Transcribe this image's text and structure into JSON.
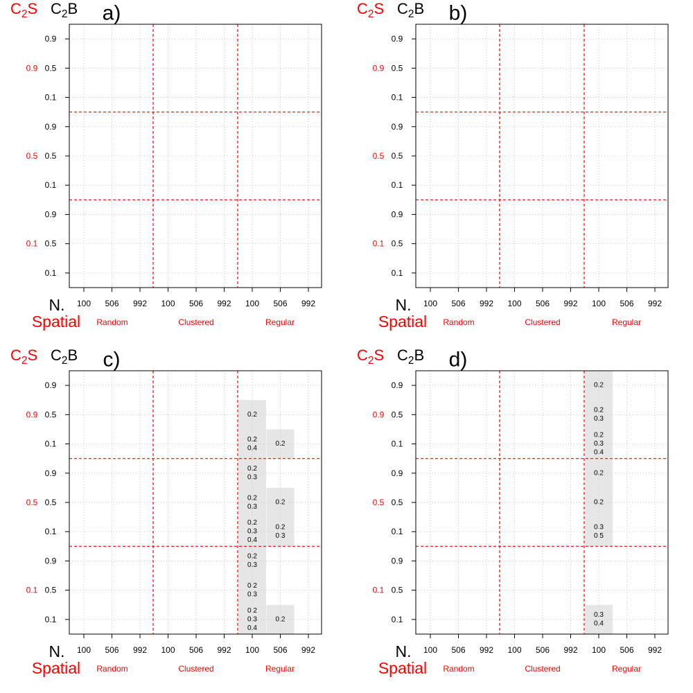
{
  "header": {
    "c2s": "C",
    "c2s_sub": "2",
    "c2s_tail": "S",
    "c2b": "C",
    "c2b_sub": "2",
    "c2b_tail": "B"
  },
  "footer": {
    "n_label": "N.",
    "spatial_label": "Spatial"
  },
  "colors": {
    "accent": "#ff0000",
    "grid": "#c8c8c8",
    "cell_fill": "#e6e6e6",
    "text": "#000000"
  },
  "chart_data": [
    {
      "type": "table",
      "title": "a)",
      "rows": [
        {
          "c2s": "0.9",
          "c2b": "0.9"
        },
        {
          "c2s": "0.9",
          "c2b": "0.5"
        },
        {
          "c2s": "0.9",
          "c2b": "0.1"
        },
        {
          "c2s": "0.5",
          "c2b": "0.9"
        },
        {
          "c2s": "0.5",
          "c2b": "0.5"
        },
        {
          "c2s": "0.5",
          "c2b": "0.1"
        },
        {
          "c2s": "0.1",
          "c2b": "0.9"
        },
        {
          "c2s": "0.1",
          "c2b": "0.5"
        },
        {
          "c2s": "0.1",
          "c2b": "0.1"
        }
      ],
      "row_groups": [
        "0.9",
        "0.5",
        "0.1"
      ],
      "columns": [
        "100",
        "506",
        "992",
        "100",
        "506",
        "992",
        "100",
        "506",
        "992"
      ],
      "column_groups": [
        "Random",
        "Clustered",
        "Regular"
      ],
      "cells": []
    },
    {
      "type": "table",
      "title": "b)",
      "rows": [
        {
          "c2s": "0.9",
          "c2b": "0.9"
        },
        {
          "c2s": "0.9",
          "c2b": "0.5"
        },
        {
          "c2s": "0.9",
          "c2b": "0.1"
        },
        {
          "c2s": "0.5",
          "c2b": "0.9"
        },
        {
          "c2s": "0.5",
          "c2b": "0.5"
        },
        {
          "c2s": "0.5",
          "c2b": "0.1"
        },
        {
          "c2s": "0.1",
          "c2b": "0.9"
        },
        {
          "c2s": "0.1",
          "c2b": "0.5"
        },
        {
          "c2s": "0.1",
          "c2b": "0.1"
        }
      ],
      "row_groups": [
        "0.9",
        "0.5",
        "0.1"
      ],
      "columns": [
        "100",
        "506",
        "992",
        "100",
        "506",
        "992",
        "100",
        "506",
        "992"
      ],
      "column_groups": [
        "Random",
        "Clustered",
        "Regular"
      ],
      "cells": []
    },
    {
      "type": "table",
      "title": "c)",
      "rows": [
        {
          "c2s": "0.9",
          "c2b": "0.9"
        },
        {
          "c2s": "0.9",
          "c2b": "0.5"
        },
        {
          "c2s": "0.9",
          "c2b": "0.1"
        },
        {
          "c2s": "0.5",
          "c2b": "0.9"
        },
        {
          "c2s": "0.5",
          "c2b": "0.5"
        },
        {
          "c2s": "0.5",
          "c2b": "0.1"
        },
        {
          "c2s": "0.1",
          "c2b": "0.9"
        },
        {
          "c2s": "0.1",
          "c2b": "0.5"
        },
        {
          "c2s": "0.1",
          "c2b": "0.1"
        }
      ],
      "row_groups": [
        "0.9",
        "0.5",
        "0.1"
      ],
      "columns": [
        "100",
        "506",
        "992",
        "100",
        "506",
        "992",
        "100",
        "506",
        "992"
      ],
      "column_groups": [
        "Random",
        "Clustered",
        "Regular"
      ],
      "cells": [
        {
          "row": 1,
          "col": 6,
          "values": [
            "0.2"
          ]
        },
        {
          "row": 2,
          "col": 6,
          "values": [
            "0.2",
            "0.4"
          ]
        },
        {
          "row": 2,
          "col": 7,
          "values": [
            "0.2"
          ]
        },
        {
          "row": 3,
          "col": 6,
          "values": [
            "0.2",
            "0.3"
          ]
        },
        {
          "row": 4,
          "col": 6,
          "values": [
            "0.2",
            "0.3"
          ]
        },
        {
          "row": 4,
          "col": 7,
          "values": [
            "0.2"
          ]
        },
        {
          "row": 5,
          "col": 6,
          "values": [
            "0.2",
            "0.3",
            "0.4"
          ]
        },
        {
          "row": 5,
          "col": 7,
          "values": [
            "0.2",
            "0.3"
          ]
        },
        {
          "row": 6,
          "col": 6,
          "values": [
            "0.2",
            "0.3"
          ]
        },
        {
          "row": 7,
          "col": 6,
          "values": [
            "0.2",
            "0.3"
          ]
        },
        {
          "row": 8,
          "col": 6,
          "values": [
            "0.2",
            "0.3",
            "0.4"
          ]
        },
        {
          "row": 8,
          "col": 7,
          "values": [
            "0.2"
          ]
        }
      ]
    },
    {
      "type": "table",
      "title": "d)",
      "rows": [
        {
          "c2s": "0.9",
          "c2b": "0.9"
        },
        {
          "c2s": "0.9",
          "c2b": "0.5"
        },
        {
          "c2s": "0.9",
          "c2b": "0.1"
        },
        {
          "c2s": "0.5",
          "c2b": "0.9"
        },
        {
          "c2s": "0.5",
          "c2b": "0.5"
        },
        {
          "c2s": "0.5",
          "c2b": "0.1"
        },
        {
          "c2s": "0.1",
          "c2b": "0.9"
        },
        {
          "c2s": "0.1",
          "c2b": "0.5"
        },
        {
          "c2s": "0.1",
          "c2b": "0.1"
        }
      ],
      "row_groups": [
        "0.9",
        "0.5",
        "0.1"
      ],
      "columns": [
        "100",
        "506",
        "992",
        "100",
        "506",
        "992",
        "100",
        "506",
        "992"
      ],
      "column_groups": [
        "Random",
        "Clustered",
        "Regular"
      ],
      "cells": [
        {
          "row": 0,
          "col": 6,
          "values": [
            "0.2"
          ]
        },
        {
          "row": 1,
          "col": 6,
          "values": [
            "0.2",
            "0.3"
          ]
        },
        {
          "row": 2,
          "col": 6,
          "values": [
            "0.2",
            "0.3",
            "0.4"
          ]
        },
        {
          "row": 3,
          "col": 6,
          "values": [
            "0.2"
          ]
        },
        {
          "row": 4,
          "col": 6,
          "values": [
            "0.2"
          ]
        },
        {
          "row": 5,
          "col": 6,
          "values": [
            "0.3",
            "0.5"
          ]
        },
        {
          "row": 8,
          "col": 6,
          "values": [
            "0.3",
            "0.4"
          ]
        }
      ]
    }
  ]
}
